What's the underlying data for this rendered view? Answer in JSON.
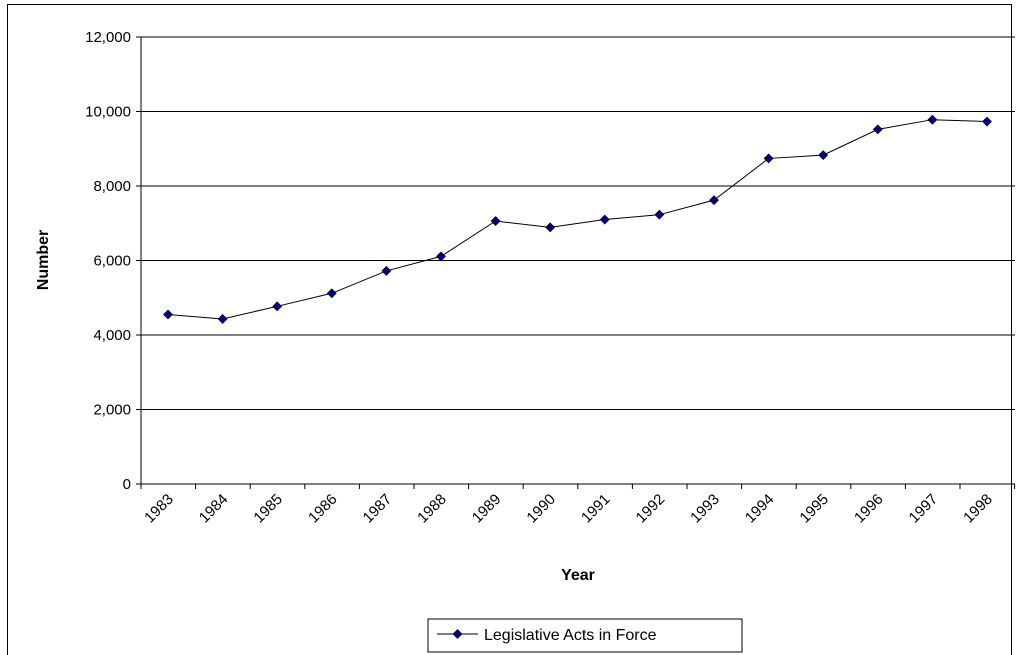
{
  "chart_data": {
    "type": "line",
    "title": "",
    "xlabel": "Year",
    "ylabel": "Number",
    "ylim": [
      0,
      12000
    ],
    "y_ticks": [
      0,
      2000,
      4000,
      6000,
      8000,
      10000,
      12000
    ],
    "y_tick_labels": [
      "0",
      "2,000",
      "4,000",
      "6,000",
      "8,000",
      "10,000",
      "12,000"
    ],
    "grid": "horizontal",
    "legend_position": "bottom",
    "categories": [
      "1983",
      "1984",
      "1985",
      "1986",
      "1987",
      "1988",
      "1989",
      "1990",
      "1991",
      "1992",
      "1993",
      "1994",
      "1995",
      "1996",
      "1997",
      "1998"
    ],
    "series": [
      {
        "name": "Legislative Acts in Force",
        "color": "#000080",
        "line_color": "#000000",
        "marker": "diamond",
        "values": [
          4550,
          4430,
          4770,
          5120,
          5720,
          6110,
          7060,
          6890,
          7100,
          7230,
          7620,
          8740,
          8830,
          9520,
          9780,
          9730
        ]
      }
    ]
  }
}
